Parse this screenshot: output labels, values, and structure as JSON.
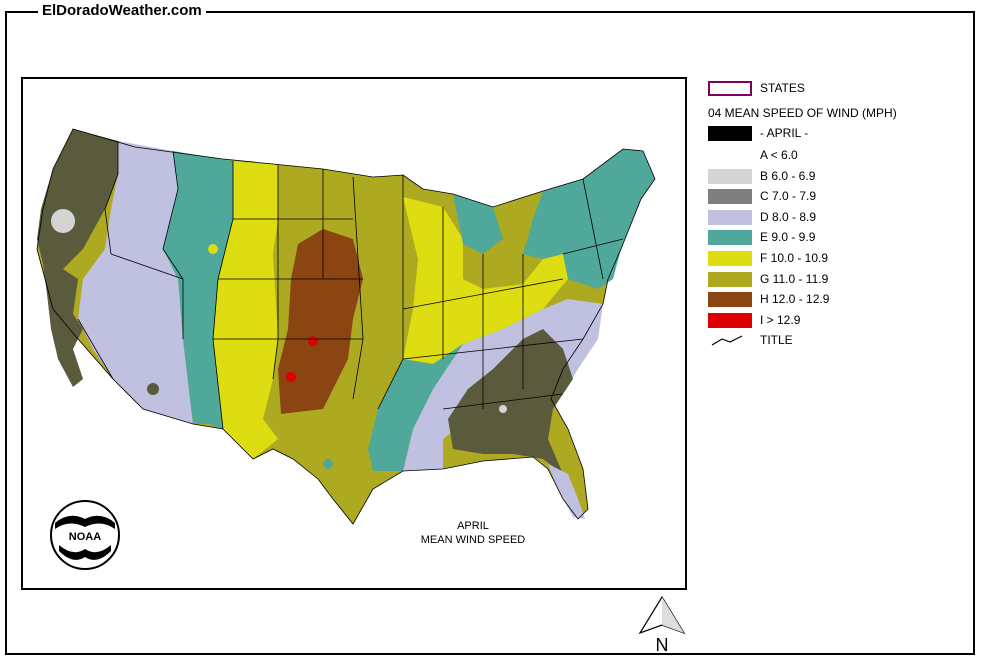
{
  "site": {
    "title": "ElDoradoWeather.com"
  },
  "map": {
    "title_line1": "APRIL",
    "title_line2": "MEAN WIND SPEED",
    "logo_text": "NOAA"
  },
  "legend": {
    "states_label": "STATES",
    "header": "04 MEAN SPEED OF WIND (MPH)",
    "month_label": "- APRIL -",
    "classes": [
      {
        "id": "A",
        "label": "A < 6.0",
        "color": "#ffffff"
      },
      {
        "id": "B",
        "label": "B 6.0 - 6.9",
        "color": "#d4d4d4"
      },
      {
        "id": "C",
        "label": "C 7.0 - 7.9",
        "color": "#7f7f7f"
      },
      {
        "id": "D",
        "label": "D 8.0 - 8.9",
        "color": "#c0c0e0"
      },
      {
        "id": "E",
        "label": "E 9.0 - 9.9",
        "color": "#4fa899"
      },
      {
        "id": "F",
        "label": "F 10.0 - 10.9",
        "color": "#dddd11"
      },
      {
        "id": "G",
        "label": "G 11.0 - 11.9",
        "color": "#adaa22"
      },
      {
        "id": "H",
        "label": "H 12.0 - 12.9",
        "color": "#8b4513"
      },
      {
        "id": "I",
        "label": "I > 12.9",
        "color": "#dd0000"
      }
    ],
    "title_label": "TITLE",
    "states_outline_color": "#800060",
    "month_swatch_color": "#000000"
  },
  "north_arrow": {
    "label": "N"
  },
  "colors": {
    "dark_olive": "#5a5a3c",
    "lavender": "#c0c0e0",
    "teal": "#4fa899",
    "yellow": "#dddd11",
    "olive": "#adaa22",
    "brown": "#8b4513",
    "red": "#dd0000",
    "lightgray": "#d4d4d4"
  }
}
